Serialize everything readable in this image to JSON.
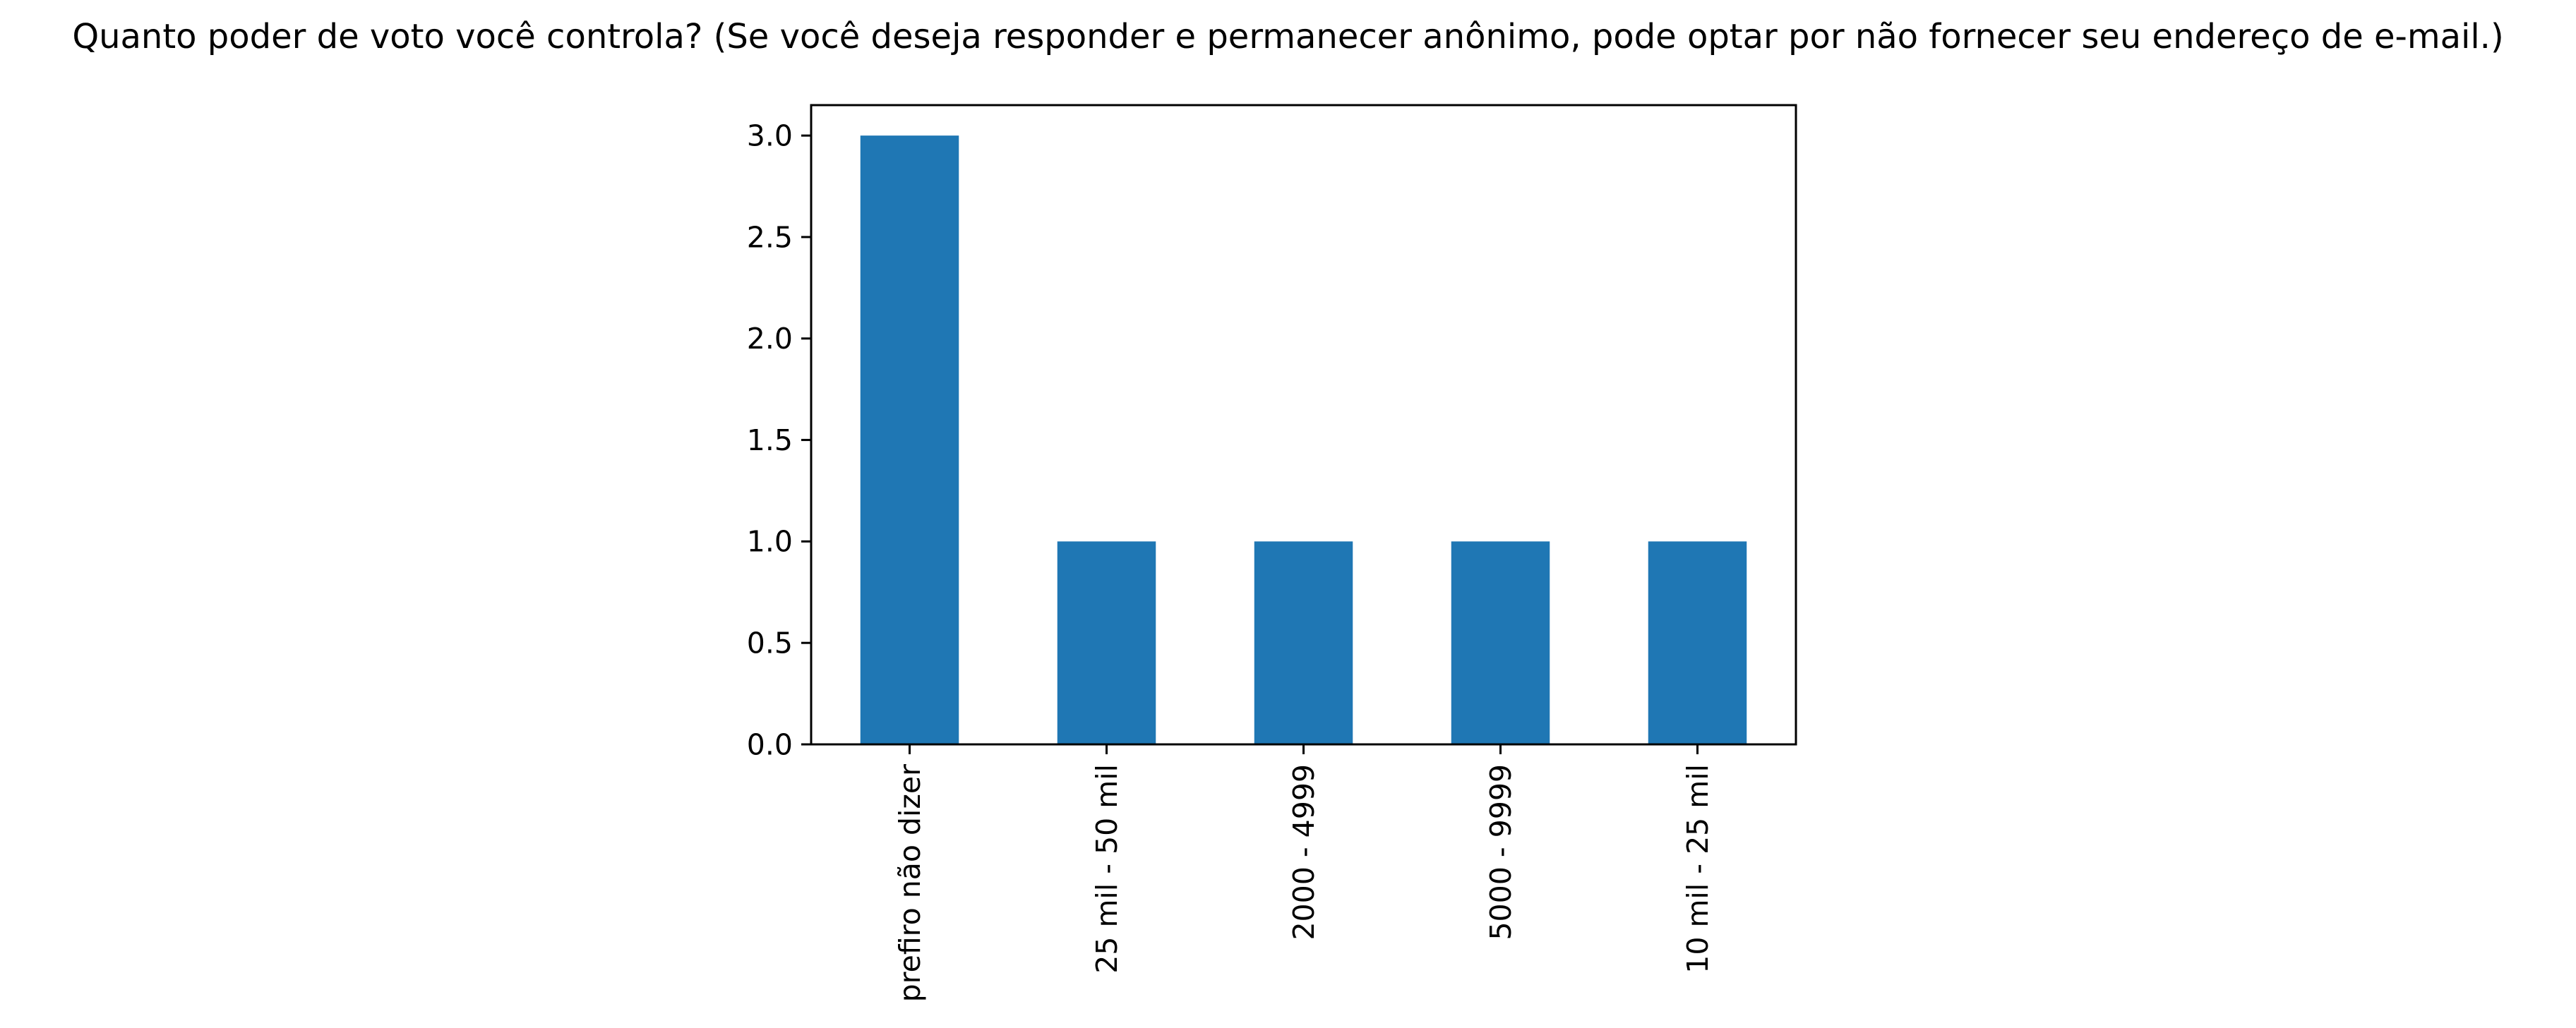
{
  "chart_data": {
    "type": "bar",
    "title": "Quanto poder de voto você controla? (Se você deseja responder e permanecer anônimo, pode optar por não fornecer seu endereço de e-mail.)",
    "xlabel": "",
    "ylabel": "",
    "categories": [
      "prefiro não dizer",
      "25 mil - 50 mil",
      "2000 - 4999",
      "5000 - 9999",
      "10 mil - 25 mil"
    ],
    "values": [
      3,
      1,
      1,
      1,
      1
    ],
    "ylim": [
      0,
      3.15
    ],
    "yticks": [
      0.0,
      0.5,
      1.0,
      1.5,
      2.0,
      2.5,
      3.0
    ],
    "ytick_labels": [
      "0.0",
      "0.5",
      "1.0",
      "1.5",
      "2.0",
      "2.5",
      "3.0"
    ],
    "bar_color": "#1f77b4",
    "grid": false,
    "legend": "none",
    "x_tick_rotation": "vertical"
  }
}
